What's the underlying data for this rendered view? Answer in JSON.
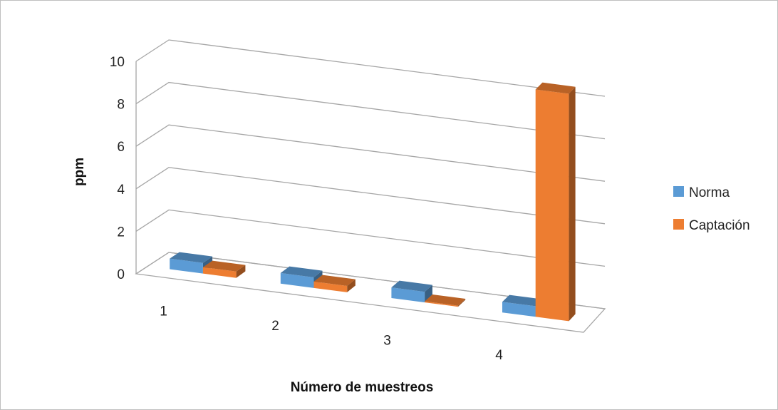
{
  "chart_data": {
    "type": "bar",
    "style": "3d-clustered-column",
    "title": "",
    "xlabel": "Número de muestreos",
    "ylabel": "ppm",
    "categories": [
      "1",
      "2",
      "3",
      "4"
    ],
    "series": [
      {
        "name": "Norma",
        "values": [
          0.5,
          0.5,
          0.5,
          0.5
        ],
        "color": "#5b9bd5"
      },
      {
        "name": "Captación",
        "values": [
          0.3,
          0.3,
          0.05,
          10.7
        ],
        "color": "#ed7d31"
      }
    ],
    "ylim": [
      0,
      10
    ],
    "yticks": [
      "0",
      "2",
      "4",
      "6",
      "8",
      "10"
    ],
    "grid": true,
    "legend_position": "right"
  }
}
